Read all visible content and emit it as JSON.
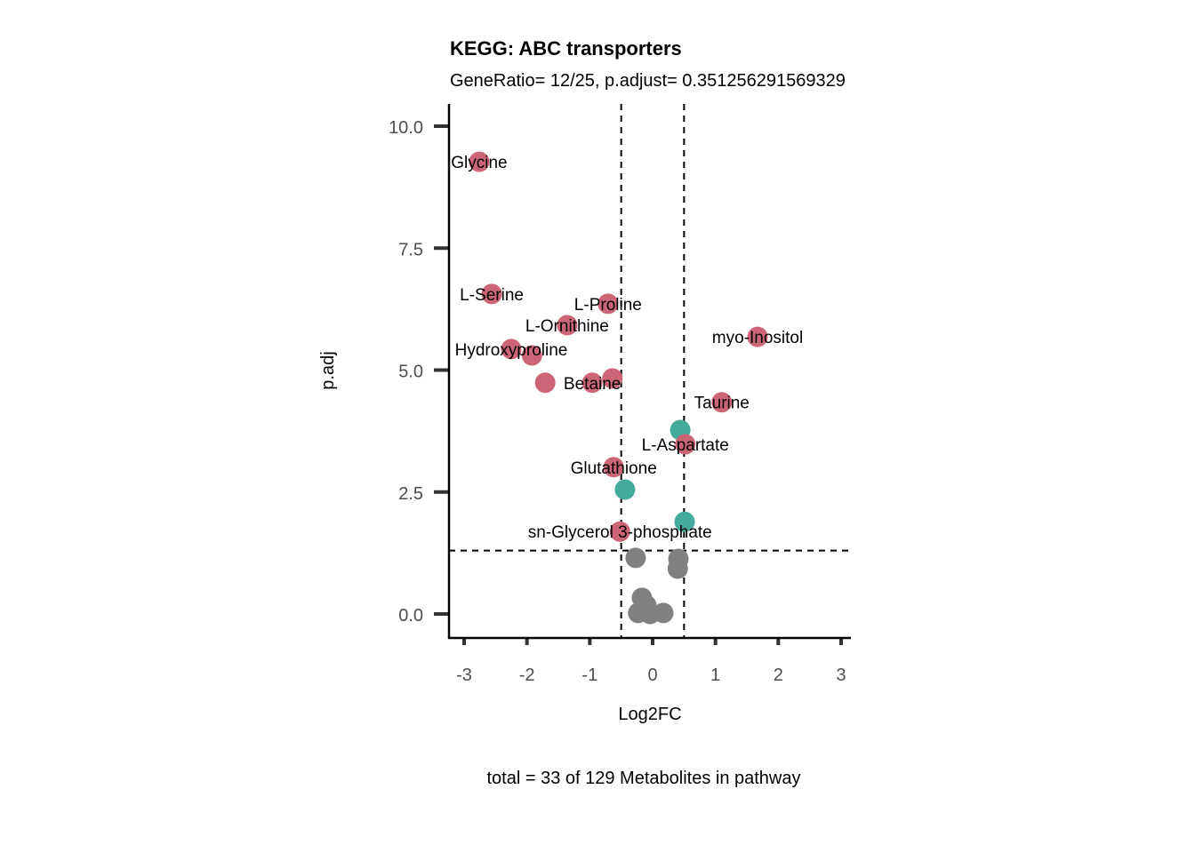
{
  "chart_data": {
    "type": "scatter",
    "title": "KEGG: ABC transporters",
    "subtitle": "GeneRatio= 12/25, p.adjust= 0.351256291569329",
    "xlabel": "Log2FC",
    "ylabel": "p.adj",
    "caption": "total = 33 of 129 Metabolites in pathway",
    "xlim": [
      -3.2,
      3.15
    ],
    "ylim": [
      -0.5,
      10.5
    ],
    "xticks": [
      -3,
      -2,
      -1,
      0,
      1,
      2,
      3
    ],
    "xtick_labels": [
      "-3",
      "-2",
      "-1",
      "0",
      "1",
      "2",
      "3"
    ],
    "yticks": [
      0,
      2.5,
      5,
      7.5,
      10
    ],
    "ytick_labels": [
      "0.0",
      "2.5",
      "5.0",
      "7.5",
      "10.0"
    ],
    "grid": false,
    "thresholds": {
      "x": [
        -0.5,
        0.5
      ],
      "y": 1.3
    },
    "colors": {
      "up": "#CC6677",
      "down": "#44AA99",
      "ns": "#808080"
    },
    "points": [
      {
        "x": -2.76,
        "y": 9.27,
        "group": "up",
        "label": "Glycine"
      },
      {
        "x": -2.56,
        "y": 6.56,
        "group": "up",
        "label": "L-Serine"
      },
      {
        "x": -0.71,
        "y": 6.36,
        "group": "up",
        "label": "L-Proline"
      },
      {
        "x": -1.36,
        "y": 5.92,
        "group": "up",
        "label": "L-Ornithine"
      },
      {
        "x": -2.25,
        "y": 5.43,
        "group": "up",
        "label": "Hydroxyproline"
      },
      {
        "x": -1.92,
        "y": 5.3,
        "group": "up",
        "label": ""
      },
      {
        "x": -1.71,
        "y": 4.74,
        "group": "up",
        "label": ""
      },
      {
        "x": -0.96,
        "y": 4.74,
        "group": "up",
        "label": "Betaine"
      },
      {
        "x": -0.64,
        "y": 4.83,
        "group": "up",
        "label": ""
      },
      {
        "x": 1.67,
        "y": 5.68,
        "group": "up",
        "label": "myo-Inositol"
      },
      {
        "x": 1.1,
        "y": 4.34,
        "group": "up",
        "label": "Taurine"
      },
      {
        "x": 0.44,
        "y": 3.77,
        "group": "down",
        "label": ""
      },
      {
        "x": 0.52,
        "y": 3.48,
        "group": "up",
        "label": "L-Aspartate"
      },
      {
        "x": -0.62,
        "y": 3.01,
        "group": "up",
        "label": "Glutathione"
      },
      {
        "x": -0.44,
        "y": 2.55,
        "group": "down",
        "label": ""
      },
      {
        "x": 0.51,
        "y": 1.89,
        "group": "down",
        "label": ""
      },
      {
        "x": -0.52,
        "y": 1.69,
        "group": "up",
        "label": "sn-Glycerol 3-phosphate"
      },
      {
        "x": -0.27,
        "y": 1.15,
        "group": "ns",
        "label": ""
      },
      {
        "x": 0.41,
        "y": 1.13,
        "group": "ns",
        "label": ""
      },
      {
        "x": 0.4,
        "y": 0.93,
        "group": "ns",
        "label": ""
      },
      {
        "x": -0.17,
        "y": 0.33,
        "group": "ns",
        "label": ""
      },
      {
        "x": -0.1,
        "y": 0.18,
        "group": "ns",
        "label": ""
      },
      {
        "x": -0.23,
        "y": 0.02,
        "group": "ns",
        "label": ""
      },
      {
        "x": -0.04,
        "y": 0.0,
        "group": "ns",
        "label": ""
      },
      {
        "x": 0.17,
        "y": 0.02,
        "group": "ns",
        "label": ""
      }
    ]
  }
}
